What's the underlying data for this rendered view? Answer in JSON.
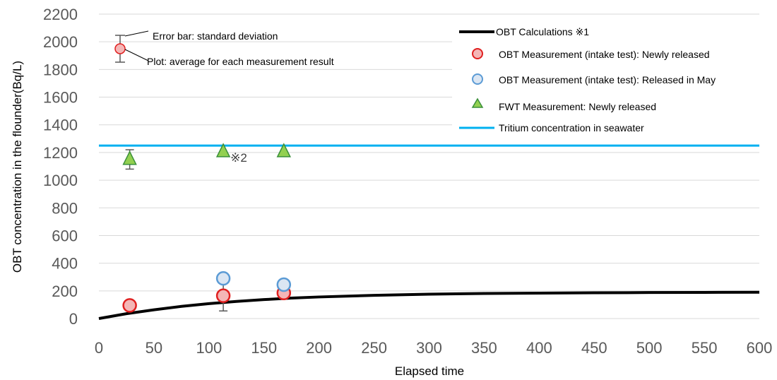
{
  "chart_data": {
    "type": "scatter",
    "xlabel": "Elapsed time",
    "ylabel": "OBT concentration in the flounder(Bq/L)",
    "xlim": [
      0,
      600
    ],
    "ylim": [
      0,
      2200
    ],
    "xticks": [
      0,
      50,
      100,
      150,
      200,
      250,
      300,
      350,
      400,
      450,
      500,
      550,
      600
    ],
    "yticks": [
      0,
      200,
      400,
      600,
      800,
      1000,
      1200,
      1400,
      1600,
      1800,
      2000,
      2200
    ],
    "grid": "horizontal",
    "legend_position": "top-right",
    "series": [
      {
        "name": "OBT Calculations ※1",
        "kind": "line",
        "color": "#000000",
        "x": [
          0,
          25,
          50,
          75,
          100,
          125,
          150,
          175,
          200,
          250,
          300,
          350,
          400,
          450,
          500,
          550,
          600
        ],
        "y": [
          0,
          35,
          63,
          88,
          108,
          124,
          137,
          148,
          156,
          168,
          176,
          181,
          184,
          186,
          188,
          189,
          190
        ]
      },
      {
        "name": "OBT Measurement (intake test): Newly released",
        "kind": "marker",
        "marker": "circle",
        "fill": "#f4b6b6",
        "stroke": "#e02020",
        "x": [
          28,
          113,
          168
        ],
        "y": [
          95,
          165,
          185
        ],
        "err": [
          0,
          110,
          0
        ]
      },
      {
        "name": "OBT Measurement (intake test): Released in May",
        "kind": "marker",
        "marker": "circle",
        "fill": "#dbe6f3",
        "stroke": "#5b9bd5",
        "x": [
          113,
          168
        ],
        "y": [
          290,
          245
        ],
        "err": [
          0,
          0
        ]
      },
      {
        "name": "FWT Measurement: Newly released",
        "kind": "marker",
        "marker": "triangle",
        "fill": "#92d050",
        "stroke": "#3a8f3a",
        "x": [
          28,
          113,
          168
        ],
        "y": [
          1150,
          1205,
          1205
        ],
        "err": [
          70,
          0,
          0
        ]
      },
      {
        "name": "Tritium concentration in seawater",
        "kind": "hline",
        "color": "#00b0f0",
        "y": 1250
      }
    ],
    "annotations": [
      {
        "text": "※2",
        "x": 113,
        "y": 1205
      }
    ],
    "note": {
      "errorbar_text": "Error bar: standard deviation",
      "plot_text": "Plot: average for each measurement result"
    }
  }
}
